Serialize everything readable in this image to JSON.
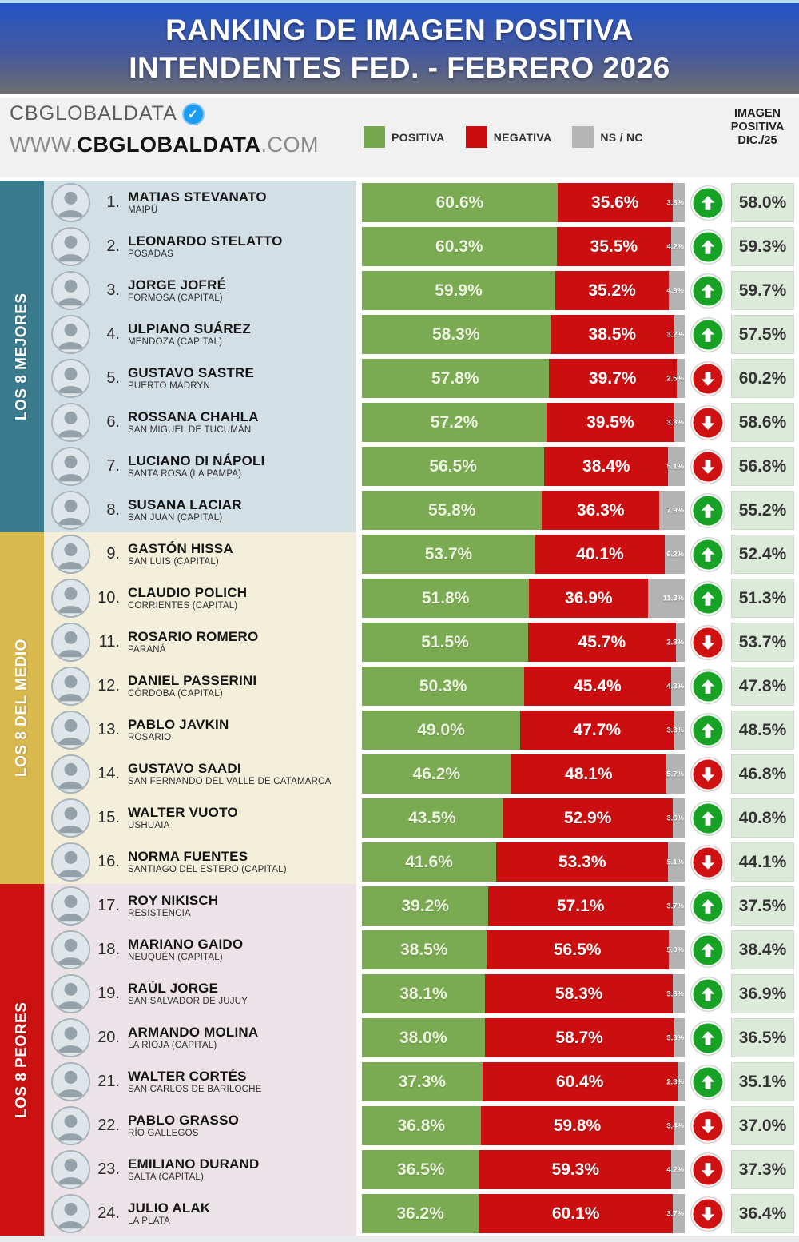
{
  "header": {
    "title_line1": "RANKING DE IMAGEN POSITIVA",
    "title_line2": "INTENDENTES FED. - FEBRERO 2026"
  },
  "brand": {
    "name": "CBGLOBALDATA",
    "url_prefix": "WWW.",
    "url_name": "CBGLOBALDATA",
    "url_suffix": ".COM"
  },
  "legend": {
    "items": [
      {
        "label": "POSITIVA",
        "color": "#76a74f"
      },
      {
        "label": "NEGATIVA",
        "color": "#c90c0e"
      },
      {
        "label": "NS / NC",
        "color": "#b5b5b5"
      }
    ]
  },
  "prev_column": {
    "line1": "IMAGEN",
    "line2": "POSITIVA",
    "line3": "DIC./25"
  },
  "colors": {
    "positiva": "#7aaa52",
    "negativa": "#cb0e10",
    "ns_nc": "#b3b3b3",
    "trend_up": "#17a125",
    "trend_down": "#d01112"
  },
  "chart_data": {
    "type": "bar",
    "stacked": true,
    "unit": "%",
    "title": "RANKING DE IMAGEN POSITIVA INTENDENTES FED. - FEBRERO 2026",
    "series_names": [
      "POSITIVA",
      "NEGATIVA",
      "NS / NC",
      "IMAGEN POSITIVA DIC./25"
    ],
    "xlim": [
      0,
      100
    ],
    "groups": [
      {
        "label": "LOS 8 MEJORES",
        "color": "#3a7b8e",
        "row_bg": "#d2dfe4",
        "rows": [
          {
            "rank": 1,
            "name": "MATIAS STEVANATO",
            "city": "MAIPÚ",
            "positiva": 60.6,
            "negativa": 35.6,
            "ns_nc": 3.8,
            "trend": "up",
            "prev": 58.0
          },
          {
            "rank": 2,
            "name": "LEONARDO STELATTO",
            "city": "POSADAS",
            "positiva": 60.3,
            "negativa": 35.5,
            "ns_nc": 4.2,
            "trend": "up",
            "prev": 59.3
          },
          {
            "rank": 3,
            "name": "JORGE JOFRÉ",
            "city": "FORMOSA (CAPITAL)",
            "positiva": 59.9,
            "negativa": 35.2,
            "ns_nc": 4.9,
            "trend": "up",
            "prev": 59.7
          },
          {
            "rank": 4,
            "name": "ULPIANO SUÁREZ",
            "city": "MENDOZA (CAPITAL)",
            "positiva": 58.3,
            "negativa": 38.5,
            "ns_nc": 3.2,
            "trend": "up",
            "prev": 57.5
          },
          {
            "rank": 5,
            "name": "GUSTAVO SASTRE",
            "city": "PUERTO MADRYN",
            "positiva": 57.8,
            "negativa": 39.7,
            "ns_nc": 2.5,
            "trend": "down",
            "prev": 60.2
          },
          {
            "rank": 6,
            "name": "ROSSANA CHAHLA",
            "city": "SAN MIGUEL DE TUCUMÁN",
            "positiva": 57.2,
            "negativa": 39.5,
            "ns_nc": 3.3,
            "trend": "down",
            "prev": 58.6
          },
          {
            "rank": 7,
            "name": "LUCIANO DI NÁPOLI",
            "city": "SANTA ROSA (LA PAMPA)",
            "positiva": 56.5,
            "negativa": 38.4,
            "ns_nc": 5.1,
            "trend": "down",
            "prev": 56.8
          },
          {
            "rank": 8,
            "name": "SUSANA LACIAR",
            "city": "SAN JUAN (CAPITAL)",
            "positiva": 55.8,
            "negativa": 36.3,
            "ns_nc": 7.9,
            "trend": "up",
            "prev": 55.2
          }
        ]
      },
      {
        "label": "LOS 8 DEL MEDIO",
        "color": "#d9b94d",
        "row_bg": "#f3efdb",
        "rows": [
          {
            "rank": 9,
            "name": "GASTÓN HISSA",
            "city": "SAN LUIS (CAPITAL)",
            "positiva": 53.7,
            "negativa": 40.1,
            "ns_nc": 6.2,
            "trend": "up",
            "prev": 52.4
          },
          {
            "rank": 10,
            "name": "CLAUDIO POLICH",
            "city": "CORRIENTES (CAPITAL)",
            "positiva": 51.8,
            "negativa": 36.9,
            "ns_nc": 11.3,
            "trend": "up",
            "prev": 51.3
          },
          {
            "rank": 11,
            "name": "ROSARIO ROMERO",
            "city": "PARANÁ",
            "positiva": 51.5,
            "negativa": 45.7,
            "ns_nc": 2.8,
            "trend": "down",
            "prev": 53.7
          },
          {
            "rank": 12,
            "name": "DANIEL PASSERINI",
            "city": "CÓRDOBA (CAPITAL)",
            "positiva": 50.3,
            "negativa": 45.4,
            "ns_nc": 4.3,
            "trend": "up",
            "prev": 47.8
          },
          {
            "rank": 13,
            "name": "PABLO JAVKIN",
            "city": "ROSARIO",
            "positiva": 49.0,
            "negativa": 47.7,
            "ns_nc": 3.3,
            "trend": "up",
            "prev": 48.5
          },
          {
            "rank": 14,
            "name": "GUSTAVO SAADI",
            "city": "SAN FERNANDO DEL VALLE DE CATAMARCA",
            "positiva": 46.2,
            "negativa": 48.1,
            "ns_nc": 5.7,
            "trend": "down",
            "prev": 46.8
          },
          {
            "rank": 15,
            "name": "WALTER VUOTO",
            "city": "USHUAIA",
            "positiva": 43.5,
            "negativa": 52.9,
            "ns_nc": 3.6,
            "trend": "up",
            "prev": 40.8
          },
          {
            "rank": 16,
            "name": "NORMA FUENTES",
            "city": "SANTIAGO DEL ESTERO (CAPITAL)",
            "positiva": 41.6,
            "negativa": 53.3,
            "ns_nc": 5.1,
            "trend": "down",
            "prev": 44.1
          }
        ]
      },
      {
        "label": "LOS 8 PEORES",
        "color": "#cc1111",
        "row_bg": "#ebe3e7",
        "rows": [
          {
            "rank": 17,
            "name": "ROY NIKISCH",
            "city": "RESISTENCIA",
            "positiva": 39.2,
            "negativa": 57.1,
            "ns_nc": 3.7,
            "trend": "up",
            "prev": 37.5
          },
          {
            "rank": 18,
            "name": "MARIANO GAIDO",
            "city": "NEUQUÉN (CAPITAL)",
            "positiva": 38.5,
            "negativa": 56.5,
            "ns_nc": 5.0,
            "trend": "up",
            "prev": 38.4
          },
          {
            "rank": 19,
            "name": "RAÚL JORGE",
            "city": "SAN SALVADOR DE JUJUY",
            "positiva": 38.1,
            "negativa": 58.3,
            "ns_nc": 3.6,
            "trend": "up",
            "prev": 36.9
          },
          {
            "rank": 20,
            "name": "ARMANDO MOLINA",
            "city": "LA RIOJA (CAPITAL)",
            "positiva": 38.0,
            "negativa": 58.7,
            "ns_nc": 3.3,
            "trend": "up",
            "prev": 36.5
          },
          {
            "rank": 21,
            "name": "WALTER CORTÉS",
            "city": "SAN CARLOS DE BARILOCHE",
            "positiva": 37.3,
            "negativa": 60.4,
            "ns_nc": 2.3,
            "trend": "up",
            "prev": 35.1
          },
          {
            "rank": 22,
            "name": "PABLO GRASSO",
            "city": "RÍO GALLEGOS",
            "positiva": 36.8,
            "negativa": 59.8,
            "ns_nc": 3.4,
            "trend": "down",
            "prev": 37.0
          },
          {
            "rank": 23,
            "name": "EMILIANO DURAND",
            "city": "SALTA (CAPITAL)",
            "positiva": 36.5,
            "negativa": 59.3,
            "ns_nc": 4.2,
            "trend": "down",
            "prev": 37.3
          },
          {
            "rank": 24,
            "name": "JULIO ALAK",
            "city": "LA PLATA",
            "positiva": 36.2,
            "negativa": 60.1,
            "ns_nc": 3.7,
            "trend": "down",
            "prev": 36.4
          }
        ]
      }
    ]
  }
}
